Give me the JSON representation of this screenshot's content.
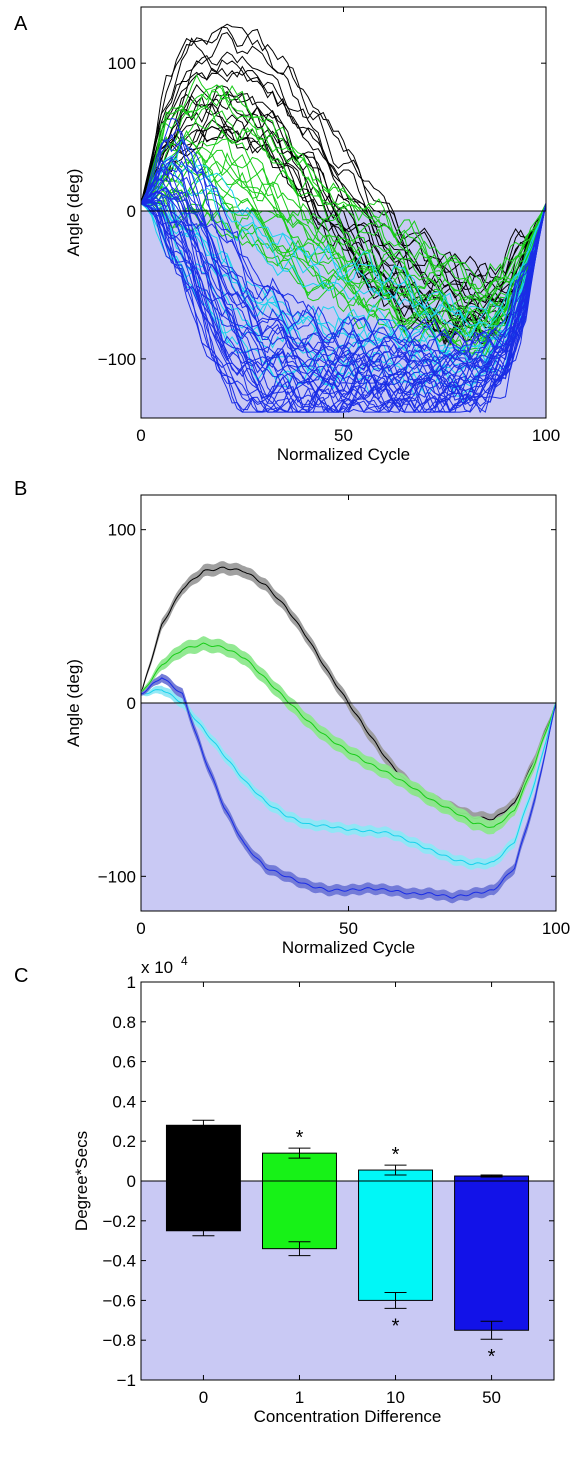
{
  "chart_data": [
    {
      "panel_label": "A",
      "type": "line",
      "xlabel": "Normalized Cycle",
      "ylabel": "Angle (deg)",
      "xlim": [
        0,
        100
      ],
      "ylim": [
        -140,
        138
      ],
      "xticks": [
        0,
        50,
        100
      ],
      "yticks": [
        -100,
        0,
        100
      ],
      "shaded_region": {
        "from": -140,
        "to": 0,
        "color": "#c9c9f4"
      },
      "zero_line": true,
      "series": [
        {
          "color": "#000000",
          "x": [
            0,
            5,
            10,
            15,
            20,
            25,
            30,
            35,
            40,
            45,
            50,
            55,
            60,
            65,
            70,
            75,
            80,
            85,
            90,
            95,
            100
          ],
          "mean": [
            5,
            45,
            66,
            76,
            78,
            76,
            68,
            55,
            38,
            18,
            0,
            -18,
            -35,
            -48,
            -56,
            -61,
            -66,
            -67,
            -58,
            -32,
            5
          ],
          "spread": [
            10,
            24,
            30,
            32,
            32,
            32,
            32,
            32,
            32,
            32,
            32,
            30,
            28,
            26,
            24,
            22,
            20,
            18,
            16,
            12,
            3
          ],
          "traces": 18,
          "seed": 11
        },
        {
          "color": "#18cc18",
          "x": [
            0,
            5,
            10,
            15,
            20,
            25,
            30,
            35,
            40,
            45,
            50,
            55,
            60,
            65,
            70,
            75,
            80,
            85,
            90,
            95,
            100
          ],
          "mean": [
            5,
            22,
            31,
            34,
            32,
            26,
            14,
            2,
            -10,
            -20,
            -28,
            -35,
            -41,
            -48,
            -56,
            -62,
            -69,
            -72,
            -62,
            -34,
            5
          ],
          "spread": [
            10,
            24,
            32,
            36,
            36,
            36,
            36,
            34,
            32,
            30,
            28,
            28,
            28,
            26,
            24,
            22,
            20,
            18,
            16,
            12,
            3
          ],
          "traces": 22,
          "seed": 23
        },
        {
          "color": "#18d2ec",
          "x": [
            0,
            5,
            10,
            15,
            20,
            25,
            30,
            35,
            40,
            45,
            50,
            55,
            60,
            65,
            70,
            75,
            80,
            85,
            90,
            95,
            100
          ],
          "mean": [
            5,
            8,
            0,
            -15,
            -30,
            -45,
            -57,
            -65,
            -70,
            -71,
            -73,
            -74,
            -75,
            -80,
            -85,
            -90,
            -93,
            -92,
            -80,
            -45,
            5
          ],
          "spread": [
            10,
            22,
            30,
            34,
            36,
            36,
            36,
            34,
            32,
            30,
            28,
            28,
            26,
            24,
            22,
            20,
            18,
            16,
            14,
            12,
            3
          ],
          "traces": 14,
          "seed": 37
        },
        {
          "color": "#1a2de6",
          "x": [
            0,
            5,
            10,
            15,
            20,
            25,
            30,
            35,
            40,
            45,
            50,
            55,
            60,
            65,
            70,
            75,
            80,
            85,
            90,
            95,
            100
          ],
          "mean": [
            5,
            15,
            5,
            -30,
            -60,
            -82,
            -95,
            -100,
            -105,
            -108,
            -108,
            -107,
            -108,
            -110,
            -110,
            -112,
            -110,
            -108,
            -95,
            -55,
            5
          ],
          "spread": [
            10,
            26,
            36,
            40,
            40,
            38,
            34,
            30,
            26,
            22,
            20,
            20,
            20,
            20,
            20,
            18,
            18,
            16,
            14,
            12,
            3
          ],
          "traces": 34,
          "seed": 51
        }
      ]
    },
    {
      "panel_label": "B",
      "type": "line",
      "xlabel": "Normalized Cycle",
      "ylabel": "Angle (deg)",
      "xlim": [
        0,
        100
      ],
      "ylim": [
        -120,
        120
      ],
      "xticks": [
        0,
        50,
        100
      ],
      "yticks": [
        -100,
        0,
        100
      ],
      "shaded_region": {
        "from": -120,
        "to": 0,
        "color": "#c9c9f4"
      },
      "zero_line": true,
      "series": [
        {
          "color": "#000000",
          "band": "#9b9b9b",
          "x": [
            0,
            5,
            10,
            15,
            20,
            25,
            30,
            35,
            40,
            45,
            50,
            55,
            60,
            65,
            70,
            75,
            80,
            85,
            90,
            95,
            100
          ],
          "y": [
            5,
            45,
            66,
            76,
            78,
            76,
            68,
            55,
            38,
            18,
            0,
            -18,
            -35,
            -48,
            -56,
            -61,
            -66,
            -67,
            -58,
            -32,
            0
          ],
          "err": [
            1,
            3,
            3,
            3.5,
            3.5,
            3.5,
            3.5,
            3.5,
            3.5,
            3.5,
            3.5,
            3.5,
            3.5,
            3.5,
            3.5,
            3.5,
            3.5,
            3.5,
            3,
            3,
            1
          ]
        },
        {
          "color": "#18cc18",
          "band": "#8de88d",
          "x": [
            0,
            5,
            10,
            15,
            20,
            25,
            30,
            35,
            40,
            45,
            50,
            55,
            60,
            65,
            70,
            75,
            80,
            85,
            90,
            95,
            100
          ],
          "y": [
            5,
            22,
            31,
            34,
            32,
            26,
            14,
            2,
            -10,
            -20,
            -28,
            -35,
            -41,
            -48,
            -56,
            -62,
            -69,
            -72,
            -62,
            -34,
            0
          ],
          "err": [
            1,
            3,
            4,
            4,
            4,
            4,
            4,
            4,
            4,
            4,
            4,
            4,
            4,
            4,
            4,
            4,
            4,
            4,
            3,
            3,
            1
          ]
        },
        {
          "color": "#18d2ec",
          "band": "#8ee8f6",
          "x": [
            0,
            5,
            10,
            15,
            20,
            25,
            30,
            35,
            40,
            45,
            50,
            55,
            60,
            65,
            70,
            75,
            80,
            85,
            90,
            95,
            100
          ],
          "y": [
            5,
            8,
            0,
            -15,
            -30,
            -45,
            -57,
            -65,
            -70,
            -71,
            -73,
            -74,
            -75,
            -80,
            -85,
            -90,
            -93,
            -92,
            -80,
            -45,
            0
          ],
          "err": [
            1,
            2.5,
            3,
            3,
            3,
            3,
            3,
            3,
            3,
            3,
            3,
            3,
            3,
            3,
            3,
            3,
            3,
            3,
            3,
            3,
            1
          ]
        },
        {
          "color": "#1a2de6",
          "band": "#6f77d6",
          "x": [
            0,
            5,
            10,
            15,
            20,
            25,
            30,
            35,
            40,
            45,
            50,
            55,
            60,
            65,
            70,
            75,
            80,
            85,
            90,
            95,
            100
          ],
          "y": [
            5,
            15,
            5,
            -30,
            -60,
            -82,
            -95,
            -100,
            -105,
            -108,
            -108,
            -107,
            -108,
            -110,
            -110,
            -112,
            -110,
            -108,
            -95,
            -55,
            0
          ],
          "err": [
            1,
            2.5,
            3,
            3,
            3,
            3,
            3,
            3,
            3,
            3,
            3,
            3,
            3,
            3,
            3,
            3,
            3,
            3,
            3,
            3,
            1
          ]
        }
      ]
    },
    {
      "panel_label": "C",
      "type": "bar",
      "xlabel": "Concentration Difference",
      "ylabel": "Degree*Secs",
      "exponent_label": "x 10",
      "exponent_power": "4",
      "ylim": [
        -1,
        1
      ],
      "yticks": [
        -1,
        -0.8,
        -0.6,
        -0.4,
        -0.2,
        0,
        0.2,
        0.4,
        0.6,
        0.8,
        1
      ],
      "ytick_labels": [
        "−1",
        "−0.8",
        "−0.6",
        "−0.4",
        "−0.2",
        "0",
        "0.2",
        "0.4",
        "0.6",
        "0.8",
        "1"
      ],
      "categories": [
        "0",
        "1",
        "10",
        "50"
      ],
      "colors": [
        "#000000",
        "#17f217",
        "#00f7f7",
        "#1212e8"
      ],
      "pos_values": [
        0.28,
        0.14,
        0.055,
        0.025
      ],
      "pos_err": [
        0.025,
        0.025,
        0.025,
        0.005
      ],
      "neg_values": [
        -0.25,
        -0.34,
        -0.6,
        -0.75
      ],
      "neg_err": [
        0.025,
        0.035,
        0.04,
        0.045
      ],
      "significance_pos": [
        "",
        "*",
        "*",
        ""
      ],
      "significance_neg": [
        "",
        "",
        "*",
        "*"
      ],
      "shaded_region": {
        "from": -1,
        "to": 0,
        "color": "#c9c9f4"
      },
      "zero_line": true
    }
  ]
}
